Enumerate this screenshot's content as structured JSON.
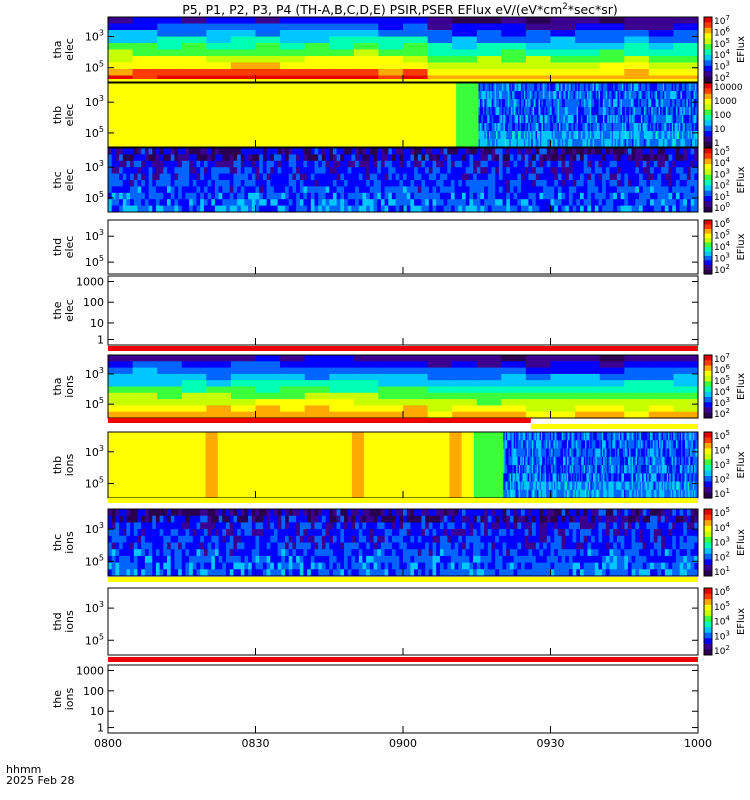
{
  "title": "P5, P1, P2, P3, P4 (TH-A,B,C,D,E) PSIR,PSER EFlux eV/(eV*cm2*sec*sr)",
  "title_parts": {
    "pre": "P5, P1, P2, P3, P4 (TH-A,B,C,D,E) PSIR,PSER EFlux eV/(eV*cm",
    "sup": "2",
    "post": "*sec*sr)"
  },
  "x_axis": {
    "type": "time",
    "range": [
      "0800",
      "1000"
    ],
    "ticks": [
      "0800",
      "0830",
      "0900",
      "0930",
      "1000"
    ],
    "label_top": "hhmm",
    "label_bottom": "2025 Feb 28"
  },
  "colorbar_label": "EFlux",
  "colors": {
    "spectrum": [
      "#2a0050",
      "#3c0090",
      "#0000ff",
      "#0064ff",
      "#00c8ff",
      "#00ffb4",
      "#3cff3c",
      "#c8ff00",
      "#ffff00",
      "#ffaa00",
      "#ff3c00",
      "#e60000"
    ],
    "flag_red": "#ee0000",
    "flag_yellow": "#ffff00"
  },
  "chart_data": [
    {
      "type": "heatmap",
      "probe": "tha",
      "species": "electrons",
      "label": [
        "tha",
        "elec"
      ],
      "y_ticks": [
        {
          "m": "10",
          "e": "3"
        },
        {
          "m": "10",
          "e": "5"
        }
      ],
      "colorbar_ticks": [
        {
          "m": "10",
          "e": "7"
        },
        {
          "m": "10",
          "e": "6"
        },
        {
          "m": "10",
          "e": "5"
        },
        {
          "m": "10",
          "e": "4"
        },
        {
          "m": "10",
          "e": "3"
        },
        {
          "m": "10",
          "e": "2"
        }
      ],
      "colorbar_label": "EFlux",
      "pattern": "tha-elec",
      "flags": []
    },
    {
      "type": "heatmap",
      "probe": "thb",
      "species": "electrons",
      "label": [
        "thb",
        "elec"
      ],
      "y_ticks": [
        {
          "m": "10",
          "e": "3"
        },
        {
          "m": "10",
          "e": "5"
        }
      ],
      "colorbar_ticks": [
        {
          "m": "10000",
          "e": ""
        },
        {
          "m": "1000",
          "e": ""
        },
        {
          "m": "100",
          "e": ""
        },
        {
          "m": "10",
          "e": ""
        },
        {
          "m": "1",
          "e": ""
        }
      ],
      "colorbar_label": "",
      "pattern": "thb-elec",
      "flags": []
    },
    {
      "type": "heatmap",
      "probe": "thc",
      "species": "electrons",
      "label": [
        "thc",
        "elec"
      ],
      "y_ticks": [
        {
          "m": "10",
          "e": "3"
        },
        {
          "m": "10",
          "e": "5"
        }
      ],
      "colorbar_ticks": [
        {
          "m": "10",
          "e": "5"
        },
        {
          "m": "10",
          "e": "4"
        },
        {
          "m": "10",
          "e": "3"
        },
        {
          "m": "10",
          "e": "2"
        },
        {
          "m": "10",
          "e": "1"
        },
        {
          "m": "10",
          "e": "0"
        }
      ],
      "colorbar_label": "EFlux",
      "pattern": "thc-elec",
      "flags": []
    },
    {
      "type": "heatmap",
      "probe": "thd",
      "species": "electrons",
      "label": [
        "thd",
        "elec"
      ],
      "y_ticks": [
        {
          "m": "10",
          "e": "3"
        },
        {
          "m": "10",
          "e": "5"
        }
      ],
      "colorbar_ticks": [
        {
          "m": "10",
          "e": "6"
        },
        {
          "m": "10",
          "e": "5"
        },
        {
          "m": "10",
          "e": "4"
        },
        {
          "m": "10",
          "e": "3"
        },
        {
          "m": "10",
          "e": "2"
        }
      ],
      "colorbar_label": "EFlux",
      "pattern": "empty",
      "flags": []
    },
    {
      "type": "heatmap",
      "probe": "the",
      "species": "electrons",
      "label": [
        "the",
        "elec"
      ],
      "y_ticks": [
        {
          "m": "1000",
          "e": ""
        },
        {
          "m": "100",
          "e": ""
        },
        {
          "m": "10",
          "e": ""
        },
        {
          "m": "1",
          "e": ""
        }
      ],
      "colorbar_ticks": [],
      "colorbar_label": "",
      "pattern": "empty",
      "flags": [
        {
          "color": "red",
          "from": "0800",
          "to": "1000"
        }
      ]
    },
    {
      "type": "heatmap",
      "probe": "tha",
      "species": "ions",
      "label": [
        "tha",
        "ions"
      ],
      "y_ticks": [
        {
          "m": "10",
          "e": "3"
        },
        {
          "m": "10",
          "e": "5"
        }
      ],
      "colorbar_ticks": [
        {
          "m": "10",
          "e": "7"
        },
        {
          "m": "10",
          "e": "6"
        },
        {
          "m": "10",
          "e": "5"
        },
        {
          "m": "10",
          "e": "4"
        },
        {
          "m": "10",
          "e": "3"
        },
        {
          "m": "10",
          "e": "2"
        }
      ],
      "colorbar_label": "EFlux",
      "pattern": "tha-ions",
      "flags": [
        {
          "color": "red",
          "from": "0800",
          "to": "0926"
        },
        {
          "color": "yellow",
          "from": "0926",
          "to": "1000"
        }
      ]
    },
    {
      "type": "heatmap",
      "probe": "thb",
      "species": "ions",
      "label": [
        "thb",
        "ions"
      ],
      "y_ticks": [
        {
          "m": "10",
          "e": "3"
        },
        {
          "m": "10",
          "e": "5"
        }
      ],
      "colorbar_ticks": [
        {
          "m": "10",
          "e": "5"
        },
        {
          "m": "10",
          "e": "4"
        },
        {
          "m": "10",
          "e": "3"
        },
        {
          "m": "10",
          "e": "2"
        },
        {
          "m": "10",
          "e": "1"
        }
      ],
      "colorbar_label": "EFlux",
      "pattern": "thb-ions",
      "flags": [
        {
          "color": "yellow",
          "from": "0800",
          "to": "1000"
        }
      ]
    },
    {
      "type": "heatmap",
      "probe": "thc",
      "species": "ions",
      "label": [
        "thc",
        "ions"
      ],
      "y_ticks": [
        {
          "m": "10",
          "e": "3"
        },
        {
          "m": "10",
          "e": "5"
        }
      ],
      "colorbar_ticks": [
        {
          "m": "10",
          "e": "5"
        },
        {
          "m": "10",
          "e": "4"
        },
        {
          "m": "10",
          "e": "3"
        },
        {
          "m": "10",
          "e": "2"
        },
        {
          "m": "10",
          "e": "1"
        }
      ],
      "colorbar_label": "EFlux",
      "pattern": "thc-ions",
      "flags": [
        {
          "color": "yellow",
          "from": "0800",
          "to": "1000"
        }
      ]
    },
    {
      "type": "heatmap",
      "probe": "thd",
      "species": "ions",
      "label": [
        "thd",
        "ions"
      ],
      "y_ticks": [
        {
          "m": "10",
          "e": "3"
        },
        {
          "m": "10",
          "e": "5"
        }
      ],
      "colorbar_ticks": [
        {
          "m": "10",
          "e": "6"
        },
        {
          "m": "10",
          "e": "5"
        },
        {
          "m": "10",
          "e": "4"
        },
        {
          "m": "10",
          "e": "3"
        },
        {
          "m": "10",
          "e": "2"
        }
      ],
      "colorbar_label": "EFlux",
      "pattern": "empty",
      "flags": [
        {
          "color": "red",
          "from": "0800",
          "to": "1000"
        }
      ]
    },
    {
      "type": "heatmap",
      "probe": "the",
      "species": "ions",
      "label": [
        "the",
        "ions"
      ],
      "y_ticks": [
        {
          "m": "1000",
          "e": ""
        },
        {
          "m": "100",
          "e": ""
        },
        {
          "m": "10",
          "e": ""
        },
        {
          "m": "1",
          "e": ""
        }
      ],
      "colorbar_ticks": [],
      "colorbar_label": "",
      "pattern": "empty",
      "flags": []
    }
  ]
}
